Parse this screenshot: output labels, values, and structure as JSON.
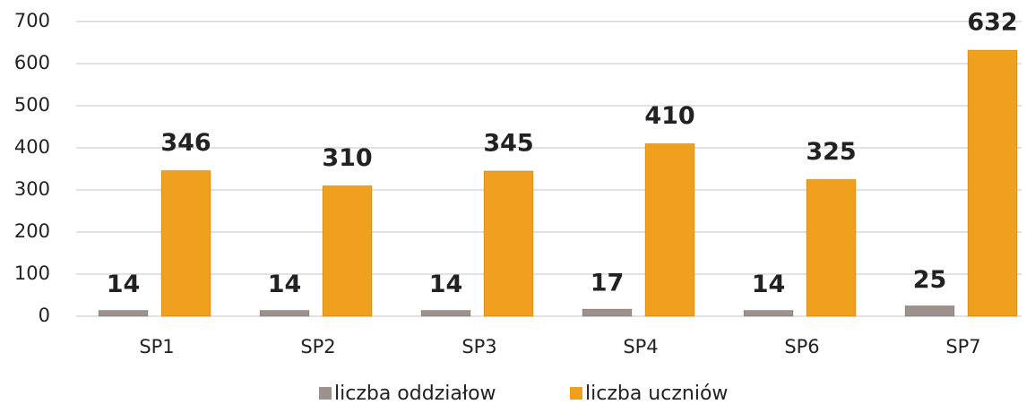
{
  "chart_data": {
    "type": "bar",
    "categories": [
      "SP1",
      "SP2",
      "SP3",
      "SP4",
      "SP6",
      "SP7"
    ],
    "series": [
      {
        "name": "liczba oddziałow",
        "color": "#9c928b",
        "values": [
          14,
          14,
          14,
          17,
          14,
          25
        ]
      },
      {
        "name": "liczba uczniów",
        "color": "#f0a01c",
        "values": [
          346,
          310,
          345,
          410,
          325,
          632
        ]
      }
    ],
    "ylim": [
      0,
      700
    ],
    "yticks": [
      0,
      100,
      200,
      300,
      400,
      500,
      600,
      700
    ],
    "grid": true,
    "legend": "bottom"
  }
}
